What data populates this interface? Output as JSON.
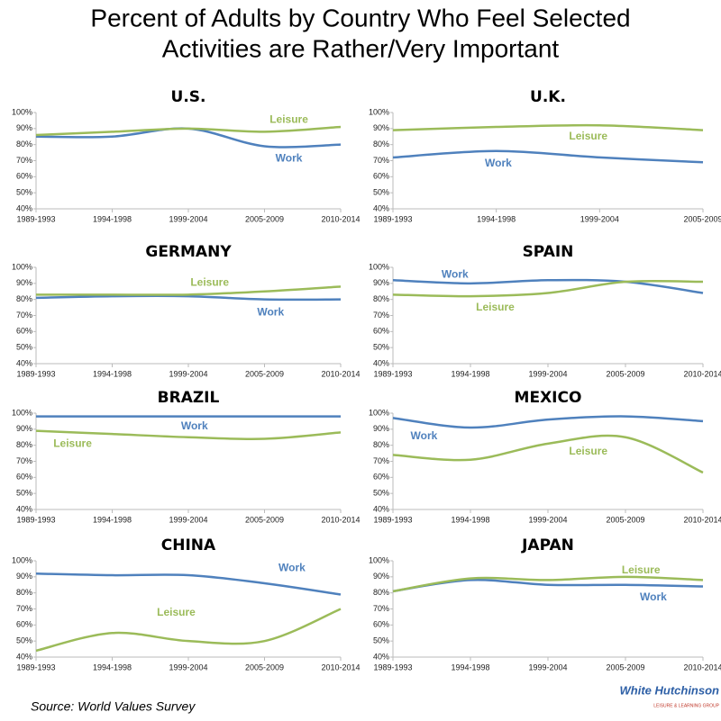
{
  "title": [
    "Percent of Adults by Country Who Feel Selected",
    "Activities are Rather/Very Important"
  ],
  "source": "Source: World Values Survey",
  "logo": {
    "name": "White Hutchinson",
    "tagline": "LEISURE & LEARNING GROUP"
  },
  "chart_data": [
    {
      "type": "line",
      "title": "U.S.",
      "categories": [
        "1989-1993",
        "1994-1998",
        "1999-2004",
        "2005-2009",
        "2010-2014"
      ],
      "series": [
        {
          "name": "Work",
          "color": "#4f81bd",
          "values": [
            85,
            85,
            90,
            79,
            80
          ]
        },
        {
          "name": "Leisure",
          "color": "#9bbb59",
          "values": [
            86,
            88,
            90,
            88,
            91
          ]
        }
      ],
      "ylim": [
        40,
        100
      ],
      "yticks": [
        {
          "value": 40,
          "label": "40%"
        },
        {
          "value": 50,
          "label": "50%"
        },
        {
          "value": 60,
          "label": "60%"
        },
        {
          "value": 70,
          "label": "70%"
        },
        {
          "value": 80,
          "label": "80%"
        },
        {
          "value": 90,
          "label": "90%"
        },
        {
          "value": 100,
          "label": "100%"
        }
      ]
    },
    {
      "type": "line",
      "title": "U.K.",
      "categories": [
        "1989-1993",
        "1994-1998",
        "1999-2004",
        "2005-2009"
      ],
      "series": [
        {
          "name": "Work",
          "color": "#4f81bd",
          "values": [
            72,
            76,
            72,
            69
          ]
        },
        {
          "name": "Leisure",
          "color": "#9bbb59",
          "values": [
            89,
            91,
            92,
            89
          ]
        }
      ],
      "ylim": [
        40,
        100
      ],
      "yticks": [
        {
          "value": 40,
          "label": "40%"
        },
        {
          "value": 50,
          "label": "50%"
        },
        {
          "value": 60,
          "label": "60%"
        },
        {
          "value": 70,
          "label": "70%"
        },
        {
          "value": 80,
          "label": "80%"
        },
        {
          "value": 90,
          "label": "90%"
        },
        {
          "value": 100,
          "label": "100%"
        }
      ]
    },
    {
      "type": "line",
      "title": "GERMANY",
      "categories": [
        "1989-1993",
        "1994-1998",
        "1999-2004",
        "2005-2009",
        "2010-2014"
      ],
      "series": [
        {
          "name": "Work",
          "color": "#4f81bd",
          "values": [
            81,
            82,
            82,
            80,
            80
          ]
        },
        {
          "name": "Leisure",
          "color": "#9bbb59",
          "values": [
            83,
            83,
            83,
            85,
            88
          ]
        }
      ],
      "ylim": [
        40,
        100
      ],
      "yticks": [
        {
          "value": 40,
          "label": "40%"
        },
        {
          "value": 50,
          "label": "50%"
        },
        {
          "value": 60,
          "label": "60%"
        },
        {
          "value": 70,
          "label": "70%"
        },
        {
          "value": 80,
          "label": "80%"
        },
        {
          "value": 90,
          "label": "90%"
        },
        {
          "value": 100,
          "label": "100%"
        }
      ]
    },
    {
      "type": "line",
      "title": "SPAIN",
      "categories": [
        "1989-1993",
        "1994-1998",
        "1999-2004",
        "2005-2009",
        "2010-2014"
      ],
      "series": [
        {
          "name": "Work",
          "color": "#4f81bd",
          "values": [
            92,
            90,
            92,
            91,
            84
          ]
        },
        {
          "name": "Leisure",
          "color": "#9bbb59",
          "values": [
            83,
            82,
            84,
            91,
            91
          ]
        }
      ],
      "ylim": [
        40,
        100
      ],
      "yticks": [
        {
          "value": 40,
          "label": "40%"
        },
        {
          "value": 50,
          "label": "50%"
        },
        {
          "value": 60,
          "label": "60%"
        },
        {
          "value": 70,
          "label": "70%"
        },
        {
          "value": 80,
          "label": "80%"
        },
        {
          "value": 90,
          "label": "90%"
        },
        {
          "value": 100,
          "label": "100%"
        }
      ]
    },
    {
      "type": "line",
      "title": "BRAZIL",
      "categories": [
        "1989-1993",
        "1994-1998",
        "1999-2004",
        "2005-2009",
        "2010-2014"
      ],
      "series": [
        {
          "name": "Work",
          "color": "#4f81bd",
          "values": [
            98,
            98,
            98,
            98,
            98
          ]
        },
        {
          "name": "Leisure",
          "color": "#9bbb59",
          "values": [
            89,
            87,
            85,
            84,
            88
          ]
        }
      ],
      "ylim": [
        40,
        100
      ],
      "yticks": [
        {
          "value": 40,
          "label": "40%"
        },
        {
          "value": 50,
          "label": "50%"
        },
        {
          "value": 60,
          "label": "60%"
        },
        {
          "value": 70,
          "label": "70%"
        },
        {
          "value": 80,
          "label": "80%"
        },
        {
          "value": 90,
          "label": "90%"
        },
        {
          "value": 100,
          "label": "100%"
        }
      ]
    },
    {
      "type": "line",
      "title": "MEXICO",
      "categories": [
        "1989-1993",
        "1994-1998",
        "1999-2004",
        "2005-2009",
        "2010-2014"
      ],
      "series": [
        {
          "name": "Work",
          "color": "#4f81bd",
          "values": [
            97,
            91,
            96,
            98,
            95
          ]
        },
        {
          "name": "Leisure",
          "color": "#9bbb59",
          "values": [
            74,
            71,
            81,
            85,
            63
          ]
        }
      ],
      "ylim": [
        40,
        100
      ],
      "yticks": [
        {
          "value": 40,
          "label": "40%"
        },
        {
          "value": 50,
          "label": "50%"
        },
        {
          "value": 60,
          "label": "60%"
        },
        {
          "value": 70,
          "label": "70%"
        },
        {
          "value": 80,
          "label": "80%"
        },
        {
          "value": 90,
          "label": "90%"
        },
        {
          "value": 100,
          "label": "100%"
        }
      ]
    },
    {
      "type": "line",
      "title": "CHINA",
      "categories": [
        "1989-1993",
        "1994-1998",
        "1999-2004",
        "2005-2009",
        "2010-2014"
      ],
      "series": [
        {
          "name": "Work",
          "color": "#4f81bd",
          "values": [
            92,
            91,
            91,
            86,
            79
          ]
        },
        {
          "name": "Leisure",
          "color": "#9bbb59",
          "values": [
            44,
            55,
            50,
            50,
            70
          ]
        }
      ],
      "ylim": [
        40,
        100
      ],
      "yticks": [
        {
          "value": 40,
          "label": "40%"
        },
        {
          "value": 50,
          "label": "50%"
        },
        {
          "value": 60,
          "label": "60%"
        },
        {
          "value": 70,
          "label": "70%"
        },
        {
          "value": 80,
          "label": "80%"
        },
        {
          "value": 90,
          "label": "90%"
        },
        {
          "value": 100,
          "label": "100%"
        }
      ]
    },
    {
      "type": "line",
      "title": "JAPAN",
      "categories": [
        "1989-1993",
        "1994-1998",
        "1999-2004",
        "2005-2009",
        "2010-2014"
      ],
      "series": [
        {
          "name": "Work",
          "color": "#4f81bd",
          "values": [
            81,
            88,
            85,
            85,
            84
          ]
        },
        {
          "name": "Leisure",
          "color": "#9bbb59",
          "values": [
            81,
            89,
            88,
            90,
            88
          ]
        }
      ],
      "ylim": [
        40,
        100
      ],
      "yticks": [
        {
          "value": 40,
          "label": "40%"
        },
        {
          "value": 50,
          "label": "50%"
        },
        {
          "value": 60,
          "label": "60%"
        },
        {
          "value": 70,
          "label": "70%"
        },
        {
          "value": 80,
          "label": "80%"
        },
        {
          "value": 90,
          "label": "90%"
        },
        {
          "value": 100,
          "label": "100%"
        }
      ]
    }
  ]
}
